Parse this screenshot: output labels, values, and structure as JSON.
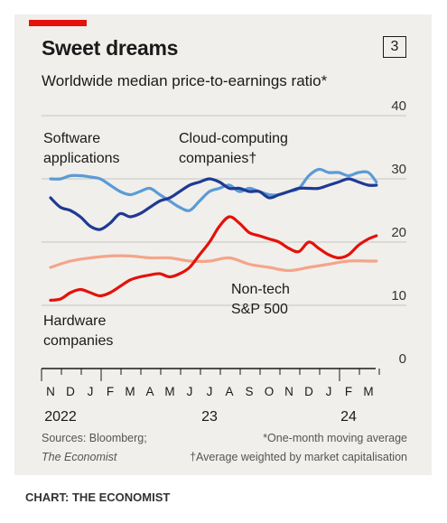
{
  "header": {
    "title": "Sweet dreams",
    "chart_number": "3",
    "subtitle": "Worldwide median price-to-earnings ratio*"
  },
  "footer": {
    "sources": "Sources: Bloomberg;",
    "publisher": "The Economist",
    "note_star": "*One-month moving average",
    "note_dagger": "†Average weighted by market capitalisation",
    "credit": "CHART: THE ECONOMIST"
  },
  "colors": {
    "software": "#5b9bd5",
    "cloud": "#1f3a93",
    "hardware": "#e3120b",
    "nontech": "#f4a58a",
    "background": "#f1efec"
  },
  "chart_data": {
    "type": "line",
    "ylim": [
      0,
      40
    ],
    "yticks": [
      0,
      10,
      20,
      30,
      40
    ],
    "ytick_labels": [
      "0",
      "10",
      "20",
      "30",
      "40"
    ],
    "months": [
      "N",
      "D",
      "J",
      "F",
      "M",
      "A",
      "M",
      "J",
      "J",
      "A",
      "S",
      "O",
      "N",
      "D",
      "J",
      "F",
      "M"
    ],
    "years": [
      {
        "label": "2022",
        "month_index": 0.5
      },
      {
        "label": "23",
        "month_index": 8
      },
      {
        "label": "24",
        "month_index": 15
      }
    ],
    "x_start": "2022-10-01",
    "x_end": "2024-03-15",
    "series": [
      {
        "key": "software",
        "name": "Software applications",
        "label_lines": [
          "Software",
          "applications"
        ],
        "values": [
          [
            0.0,
            30.0
          ],
          [
            0.5,
            30.0
          ],
          [
            1.0,
            30.5
          ],
          [
            1.5,
            30.5
          ],
          [
            2.0,
            30.3
          ],
          [
            2.5,
            30.0
          ],
          [
            3.0,
            29.0
          ],
          [
            3.5,
            28.0
          ],
          [
            4.0,
            27.5
          ],
          [
            4.5,
            28.0
          ],
          [
            5.0,
            28.5
          ],
          [
            5.5,
            27.5
          ],
          [
            6.0,
            26.5
          ],
          [
            6.5,
            25.5
          ],
          [
            7.0,
            25.0
          ],
          [
            7.5,
            26.5
          ],
          [
            8.0,
            28.0
          ],
          [
            8.5,
            28.5
          ],
          [
            9.0,
            29.0
          ],
          [
            9.5,
            28.0
          ],
          [
            10.0,
            28.5
          ],
          [
            10.5,
            28.0
          ],
          [
            11.0,
            27.5
          ],
          [
            11.5,
            27.5
          ],
          [
            12.0,
            28.0
          ],
          [
            12.5,
            28.5
          ],
          [
            13.0,
            30.5
          ],
          [
            13.5,
            31.5
          ],
          [
            14.0,
            31.0
          ],
          [
            14.5,
            31.0
          ],
          [
            15.0,
            30.5
          ],
          [
            15.5,
            31.0
          ],
          [
            16.0,
            31.0
          ],
          [
            16.4,
            29.5
          ]
        ]
      },
      {
        "key": "cloud",
        "name": "Cloud-computing companies",
        "label_lines": [
          "Cloud-computing",
          "companies†"
        ],
        "values": [
          [
            0.0,
            27.0
          ],
          [
            0.5,
            25.5
          ],
          [
            1.0,
            25.0
          ],
          [
            1.5,
            24.0
          ],
          [
            2.0,
            22.5
          ],
          [
            2.5,
            22.0
          ],
          [
            3.0,
            23.0
          ],
          [
            3.5,
            24.5
          ],
          [
            4.0,
            24.0
          ],
          [
            4.5,
            24.5
          ],
          [
            5.0,
            25.5
          ],
          [
            5.5,
            26.5
          ],
          [
            6.0,
            27.0
          ],
          [
            6.5,
            28.0
          ],
          [
            7.0,
            29.0
          ],
          [
            7.5,
            29.5
          ],
          [
            8.0,
            30.0
          ],
          [
            8.5,
            29.5
          ],
          [
            9.0,
            28.5
          ],
          [
            9.5,
            28.5
          ],
          [
            10.0,
            28.0
          ],
          [
            10.5,
            28.0
          ],
          [
            11.0,
            27.0
          ],
          [
            11.5,
            27.5
          ],
          [
            12.0,
            28.0
          ],
          [
            12.5,
            28.5
          ],
          [
            13.0,
            28.5
          ],
          [
            13.5,
            28.5
          ],
          [
            14.0,
            29.0
          ],
          [
            14.5,
            29.5
          ],
          [
            15.0,
            30.0
          ],
          [
            15.5,
            29.5
          ],
          [
            16.0,
            29.0
          ],
          [
            16.4,
            29.0
          ]
        ]
      },
      {
        "key": "hardware",
        "name": "Hardware companies",
        "label_lines": [
          "Hardware",
          "companies"
        ],
        "values": [
          [
            0.0,
            10.8
          ],
          [
            0.5,
            11.0
          ],
          [
            1.0,
            12.0
          ],
          [
            1.5,
            12.5
          ],
          [
            2.0,
            12.0
          ],
          [
            2.5,
            11.5
          ],
          [
            3.0,
            12.0
          ],
          [
            3.5,
            13.0
          ],
          [
            4.0,
            14.0
          ],
          [
            4.5,
            14.5
          ],
          [
            5.0,
            14.8
          ],
          [
            5.5,
            15.0
          ],
          [
            6.0,
            14.5
          ],
          [
            6.5,
            15.0
          ],
          [
            7.0,
            16.0
          ],
          [
            7.5,
            18.0
          ],
          [
            8.0,
            20.0
          ],
          [
            8.5,
            22.5
          ],
          [
            9.0,
            24.0
          ],
          [
            9.5,
            23.0
          ],
          [
            10.0,
            21.5
          ],
          [
            10.5,
            21.0
          ],
          [
            11.0,
            20.5
          ],
          [
            11.5,
            20.0
          ],
          [
            12.0,
            19.0
          ],
          [
            12.5,
            18.5
          ],
          [
            13.0,
            20.0
          ],
          [
            13.5,
            19.0
          ],
          [
            14.0,
            18.0
          ],
          [
            14.5,
            17.5
          ],
          [
            15.0,
            18.0
          ],
          [
            15.5,
            19.5
          ],
          [
            16.0,
            20.5
          ],
          [
            16.4,
            21.0
          ]
        ]
      },
      {
        "key": "nontech",
        "name": "Non-tech S&P 500",
        "label_lines": [
          "Non-tech",
          "S&P 500"
        ],
        "values": [
          [
            0.0,
            16.0
          ],
          [
            1.0,
            17.0
          ],
          [
            2.0,
            17.5
          ],
          [
            3.0,
            17.8
          ],
          [
            4.0,
            17.8
          ],
          [
            5.0,
            17.5
          ],
          [
            6.0,
            17.5
          ],
          [
            7.0,
            17.0
          ],
          [
            8.0,
            17.0
          ],
          [
            9.0,
            17.5
          ],
          [
            10.0,
            16.5
          ],
          [
            11.0,
            16.0
          ],
          [
            12.0,
            15.5
          ],
          [
            13.0,
            16.0
          ],
          [
            14.0,
            16.5
          ],
          [
            15.0,
            17.0
          ],
          [
            16.0,
            17.0
          ],
          [
            16.4,
            17.0
          ]
        ]
      }
    ]
  }
}
